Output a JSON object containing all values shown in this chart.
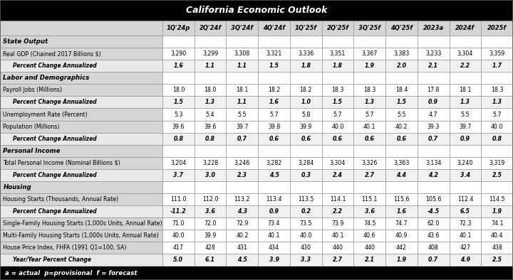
{
  "title": "California Economic Outlook",
  "col_headers": [
    "",
    "1Q'24p",
    "2Q'24f",
    "3Q'24f",
    "4Q'24f",
    "1Q'25f",
    "2Q'25f",
    "3Q'25f",
    "4Q'25f",
    "2023a",
    "2024f",
    "2025f"
  ],
  "sections": [
    {
      "label": "State Output",
      "rows": [
        {
          "label": "Real GDP (Chained 2017 Billions $)",
          "values": [
            "3,290",
            "3,299",
            "3,308",
            "3,321",
            "3,336",
            "3,351",
            "3,367",
            "3,383",
            "3,233",
            "3,304",
            "3,359"
          ],
          "bold": false,
          "italic": false,
          "indent": false
        },
        {
          "label": "Percent Change Annualized",
          "values": [
            "1.6",
            "1.1",
            "1.1",
            "1.5",
            "1.8",
            "1.8",
            "1.9",
            "2.0",
            "2.1",
            "2.2",
            "1.7"
          ],
          "bold": true,
          "italic": true,
          "indent": true
        }
      ]
    },
    {
      "label": "Labor and Demographics",
      "rows": [
        {
          "label": "Payroll Jobs (Millions)",
          "values": [
            "18.0",
            "18.0",
            "18.1",
            "18.2",
            "18.2",
            "18.3",
            "18.3",
            "18.4",
            "17.8",
            "18.1",
            "18.3"
          ],
          "bold": false,
          "italic": false,
          "indent": false
        },
        {
          "label": "Percent Change Annualized",
          "values": [
            "1.5",
            "1.3",
            "1.1",
            "1.6",
            "1.0",
            "1.5",
            "1.3",
            "1.5",
            "0.9",
            "1.3",
            "1.3"
          ],
          "bold": true,
          "italic": true,
          "indent": true
        },
        {
          "label": "Unemployment Rate (Percent)",
          "values": [
            "5.3",
            "5.4",
            "5.5",
            "5.7",
            "5.8",
            "5.7",
            "5.7",
            "5.5",
            "4.7",
            "5.5",
            "5.7"
          ],
          "bold": false,
          "italic": false,
          "indent": false
        },
        {
          "label": "Population (Millions)",
          "values": [
            "39.6",
            "39.6",
            "39.7",
            "39.8",
            "39.9",
            "40.0",
            "40.1",
            "40.2",
            "39.3",
            "39.7",
            "40.0"
          ],
          "bold": false,
          "italic": false,
          "indent": false
        },
        {
          "label": "Percent Change Annualized",
          "values": [
            "0.8",
            "0.8",
            "0.7",
            "0.6",
            "0.6",
            "0.6",
            "0.6",
            "0.6",
            "0.7",
            "0.9",
            "0.8"
          ],
          "bold": true,
          "italic": true,
          "indent": true
        }
      ]
    },
    {
      "label": "Personal Income",
      "rows": [
        {
          "label": "Total Personal Income (Nominal Billions $)",
          "values": [
            "3,204",
            "3,228",
            "3,246",
            "3,282",
            "3,284",
            "3,304",
            "3,326",
            "3,363",
            "3,134",
            "3,240",
            "3,319"
          ],
          "bold": false,
          "italic": false,
          "indent": false
        },
        {
          "label": "Percent Change Annualized",
          "values": [
            "3.7",
            "3.0",
            "2.3",
            "4.5",
            "0.3",
            "2.4",
            "2.7",
            "4.4",
            "4.2",
            "3.4",
            "2.5"
          ],
          "bold": true,
          "italic": true,
          "indent": true
        }
      ]
    },
    {
      "label": "Housing",
      "rows": [
        {
          "label": "Housing Starts (Thousands, Annual Rate)",
          "values": [
            "111.0",
            "112.0",
            "113.2",
            "113.4",
            "113.5",
            "114.1",
            "115.1",
            "115.6",
            "105.6",
            "112.4",
            "114.5"
          ],
          "bold": false,
          "italic": false,
          "indent": false
        },
        {
          "label": "Percent Change Annualized",
          "values": [
            "-11.2",
            "3.6",
            "4.3",
            "0.9",
            "0.2",
            "2.2",
            "3.6",
            "1.6",
            "-4.5",
            "6.5",
            "1.9"
          ],
          "bold": true,
          "italic": true,
          "indent": true
        },
        {
          "label": "Single-Family Housing Starts (1,000s Units, Annual Rate)",
          "values": [
            "71.0",
            "72.0",
            "72.9",
            "73.4",
            "73.5",
            "73.9",
            "74.5",
            "74.7",
            "62.0",
            "72.3",
            "74.1"
          ],
          "bold": false,
          "italic": false,
          "indent": false
        },
        {
          "label": "Multi-Family Housing Starts (1,000s Units, Annual Rate)",
          "values": [
            "40.0",
            "39.9",
            "40.2",
            "40.1",
            "40.0",
            "40.1",
            "40.6",
            "40.9",
            "43.6",
            "40.1",
            "40.4"
          ],
          "bold": false,
          "italic": false,
          "indent": false
        },
        {
          "label": "House Price Index, FHFA (1991 Q1=100, SA)",
          "values": [
            "417",
            "428",
            "431",
            "434",
            "430",
            "440",
            "440",
            "442",
            "408",
            "427",
            "438"
          ],
          "bold": false,
          "italic": false,
          "indent": false
        },
        {
          "label": "Year/Year Percent Change",
          "values": [
            "5.0",
            "6.1",
            "4.5",
            "3.9",
            "3.3",
            "2.7",
            "2.1",
            "1.9",
            "0.7",
            "4.9",
            "2.5"
          ],
          "bold": true,
          "italic": true,
          "indent": true
        }
      ]
    }
  ],
  "footnote": "a = actual  p=provisional  f = forecast",
  "title_bg": "#000000",
  "title_color": "#ffffff",
  "header_bg": "#d4d4d4",
  "label_col_bg": "#d4d4d4",
  "data_col_bg": "#ffffff",
  "indent_label_bg": "#e8e8e8",
  "indent_data_bg": "#f0f0f0",
  "section_bg": "#d4d4d4",
  "section_data_bg": "#ffffff",
  "footer_bg": "#000000",
  "footer_color": "#ffffff",
  "border_color": "#888888",
  "outer_border_color": "#555555"
}
